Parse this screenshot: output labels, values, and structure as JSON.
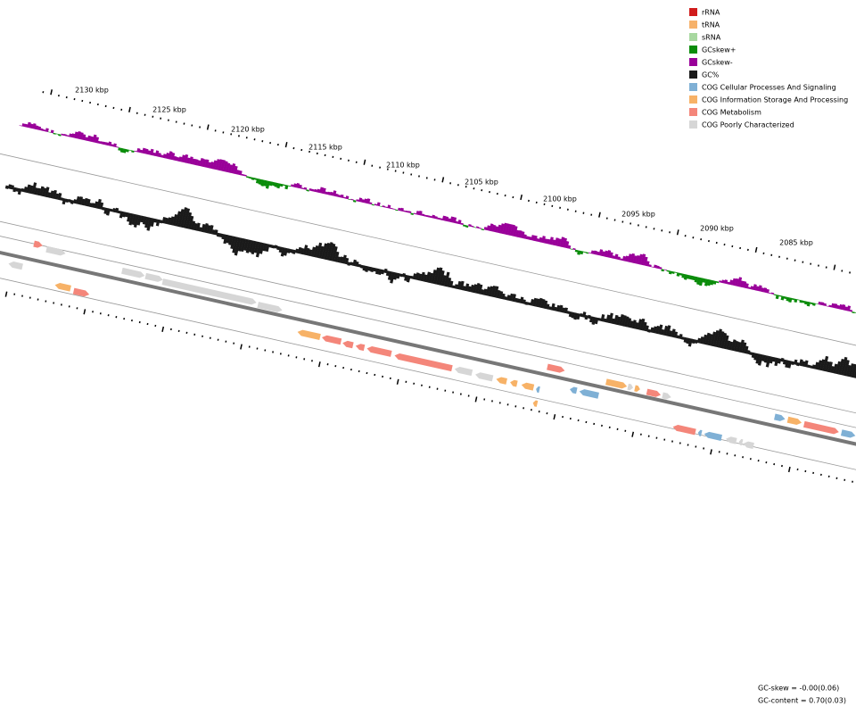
{
  "legend": [
    {
      "label": "rRNA",
      "color": "#d01c1c"
    },
    {
      "label": "tRNA",
      "color": "#f6b26b"
    },
    {
      "label": "sRNA",
      "color": "#a8d8a0"
    },
    {
      "label": "GCskew+",
      "color": "#0a8c0a"
    },
    {
      "label": "GCskew-",
      "color": "#990099"
    },
    {
      "label": "GC%",
      "color": "#1a1a1a"
    },
    {
      "label": "COG Cellular Processes And Signaling",
      "color": "#7fb0d5"
    },
    {
      "label": "COG Information Storage And Processing",
      "color": "#f7b267"
    },
    {
      "label": "COG Metabolism",
      "color": "#f4867a"
    },
    {
      "label": "COG Poorly Characterized",
      "color": "#d6d6d6"
    }
  ],
  "ticks": [
    "2130 kbp",
    "2125 kbp",
    "2120 kbp",
    "2115 kbp",
    "2110 kbp",
    "2105 kbp",
    "2100 kbp",
    "2095 kbp",
    "2090 kbp",
    "2085 kbp"
  ],
  "footer": [
    "GC-skew = -0.00(0.06)",
    "GC-content = 0.70(0.03)"
  ]
}
